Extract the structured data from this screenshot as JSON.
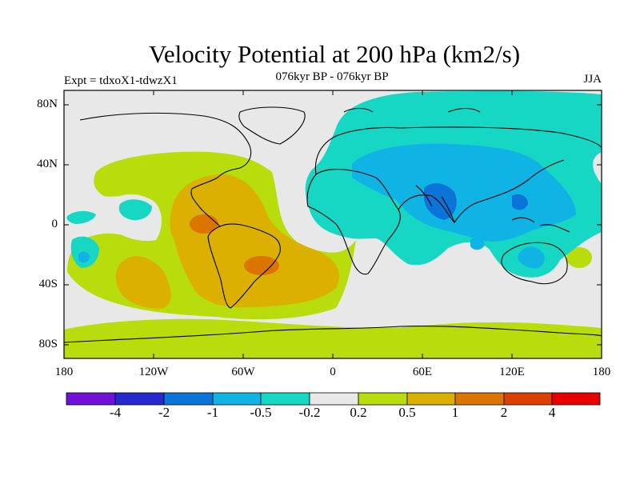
{
  "title": "Velocity Potential at 200 hPa (km2/s)",
  "subtitle": "076kyr BP - 076kyr BP",
  "experiment": "Expt = tdxoX1-tdwzX1",
  "season": "JJA",
  "lat_labels": [
    "80N",
    "40N",
    "0",
    "40S",
    "80S"
  ],
  "lon_labels": [
    "180",
    "120W",
    "60W",
    "0",
    "60E",
    "120E",
    "180"
  ],
  "colorbar": {
    "labels": [
      "-4",
      "-2",
      "-1",
      "-0.5",
      "-0.2",
      "0.2",
      "0.5",
      "1",
      "2",
      "4"
    ],
    "colors": [
      "#7010d8",
      "#2828d0",
      "#0a74d8",
      "#10b4e4",
      "#16d6c4",
      "#e8e8e8",
      "#b8dc0c",
      "#dcb000",
      "#dc7400",
      "#dc4000",
      "#e80000"
    ]
  },
  "map_colors": {
    "ocean_background": "#e8e8e8",
    "neg_weak": "#16d6c4",
    "neg_mid": "#10b4e4",
    "neg_strong": "#0a74d8",
    "pos_weak": "#b8dc0c",
    "pos_mid": "#dcb000",
    "pos_strong": "#dc7400"
  }
}
